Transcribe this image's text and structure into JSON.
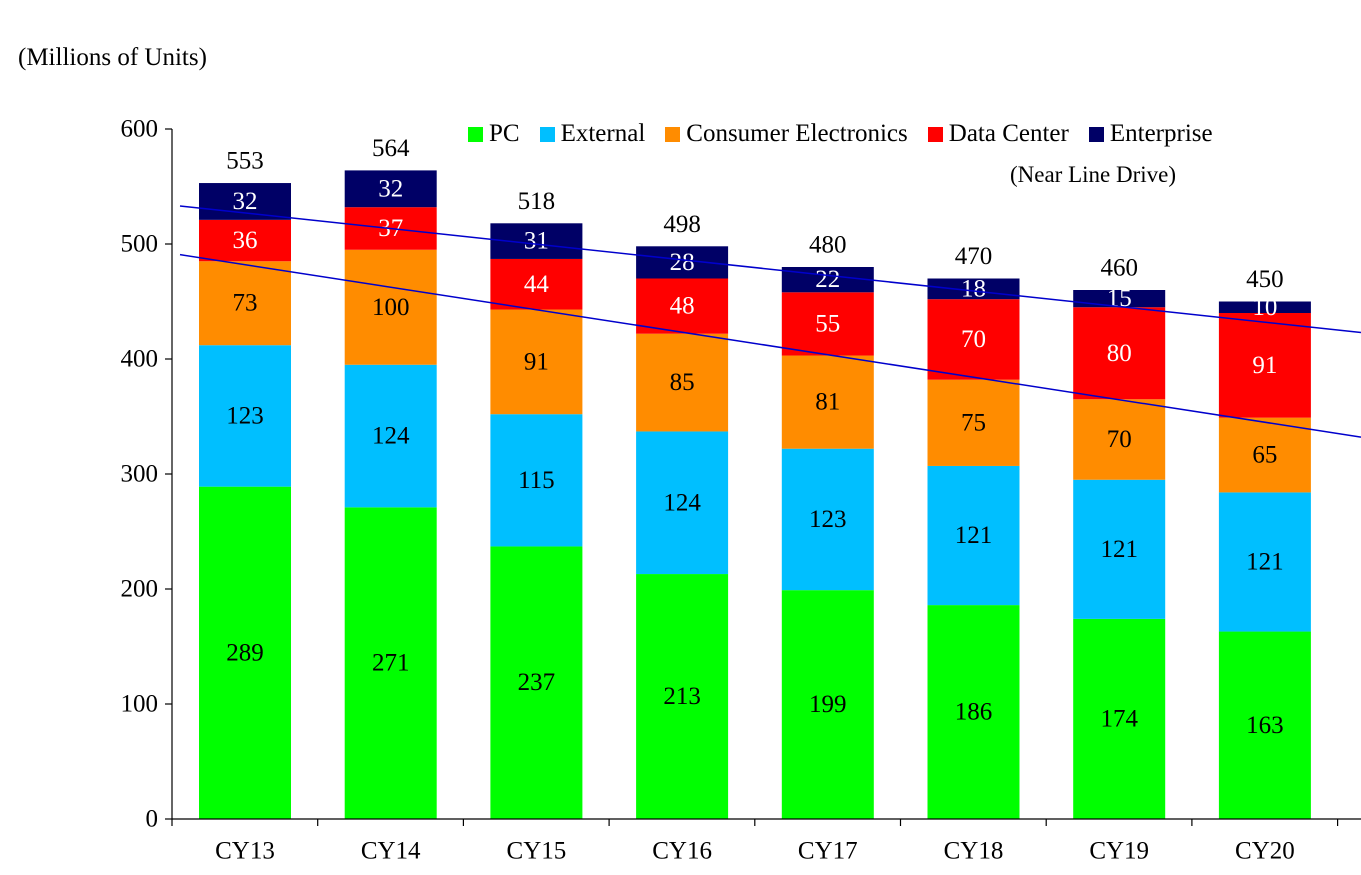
{
  "unit_label": "(Millions of Units)",
  "legend_note": "(Near Line Drive)",
  "chart_data": {
    "type": "bar",
    "stacked": true,
    "categories": [
      "CY13",
      "CY14",
      "CY15",
      "CY16",
      "CY17",
      "CY18",
      "CY19",
      "CY20"
    ],
    "series": [
      {
        "name": "PC",
        "color": "#00ff00",
        "label_color": "#000000",
        "values": [
          289,
          271,
          237,
          213,
          199,
          186,
          174,
          163
        ]
      },
      {
        "name": "External",
        "color": "#00bfff",
        "label_color": "#000000",
        "values": [
          123,
          124,
          115,
          124,
          123,
          121,
          121,
          121
        ]
      },
      {
        "name": "Consumer Electronics",
        "color": "#ff8c00",
        "label_color": "#000000",
        "values": [
          73,
          100,
          91,
          85,
          81,
          75,
          70,
          65
        ]
      },
      {
        "name": "Data Center",
        "color": "#ff0000",
        "label_color": "#ffffff",
        "values": [
          36,
          37,
          44,
          48,
          55,
          70,
          80,
          91
        ]
      },
      {
        "name": "Enterprise",
        "color": "#000066",
        "label_color": "#ffffff",
        "values": [
          32,
          32,
          31,
          28,
          22,
          18,
          15,
          10
        ]
      }
    ],
    "totals": [
      553,
      564,
      518,
      498,
      480,
      470,
      460,
      450
    ],
    "y_ticks": [
      0,
      100,
      200,
      300,
      400,
      500,
      600
    ],
    "ylim": [
      0,
      600
    ],
    "grid": false,
    "legend_position": "top",
    "trend_lines": [
      {
        "color": "#0000cc",
        "start": {
          "x": "CY13",
          "y": 527
        },
        "end": {
          "x": "CY20",
          "y": 432
        }
      },
      {
        "color": "#0000cc",
        "start": {
          "x": "CY13",
          "y": 482
        },
        "end": {
          "x": "CY20",
          "y": 345
        }
      }
    ]
  }
}
